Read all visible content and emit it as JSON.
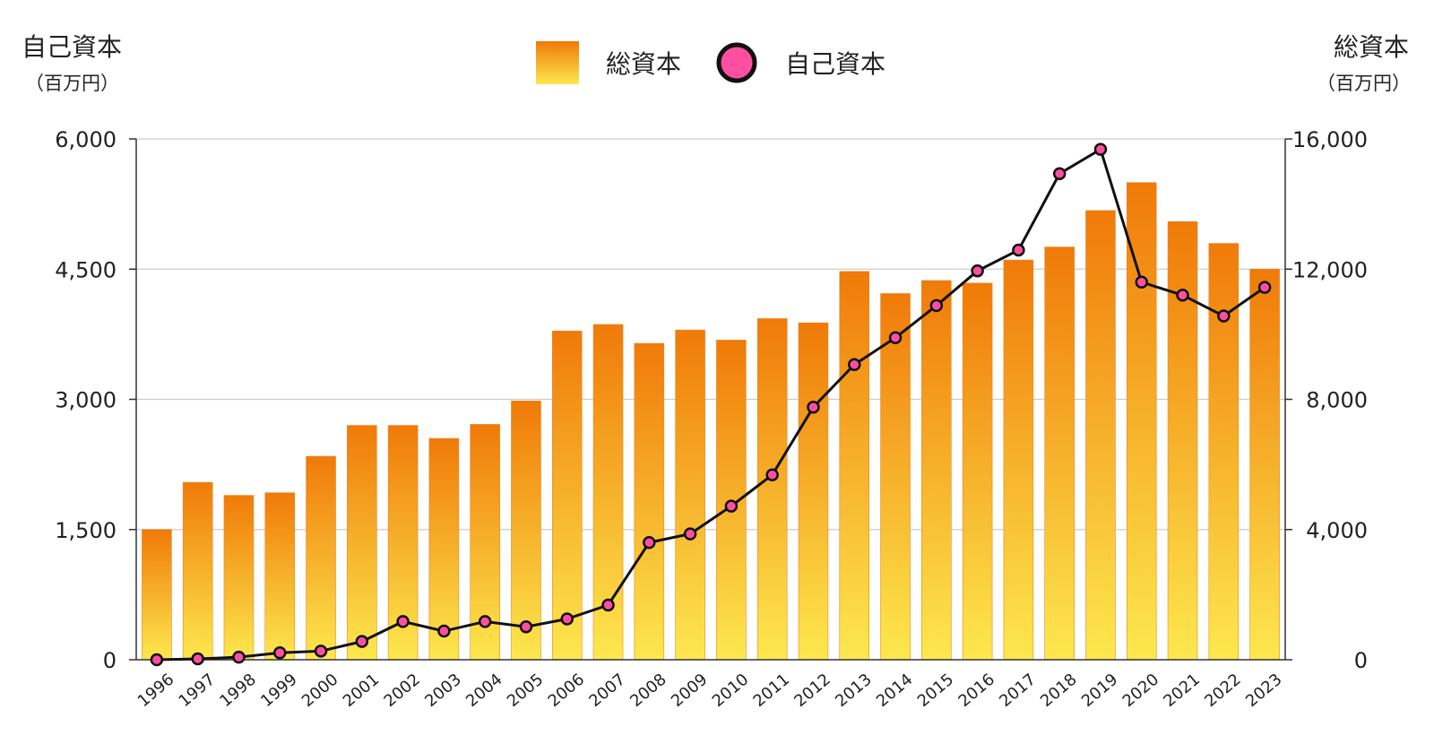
{
  "chart_data": {
    "type": "bar+line",
    "categories": [
      "1996",
      "1997",
      "1998",
      "1999",
      "2000",
      "2001",
      "2002",
      "2003",
      "2004",
      "2005",
      "2006",
      "2007",
      "2008",
      "2009",
      "2010",
      "2011",
      "2012",
      "2013",
      "2014",
      "2015",
      "2016",
      "2017",
      "2018",
      "2019",
      "2020",
      "2021",
      "2022",
      "2023"
    ],
    "series": [
      {
        "name": "総資本",
        "kind": "bar",
        "axis": "right",
        "values": [
          4000,
          5450,
          5050,
          5130,
          6250,
          7200,
          7200,
          6800,
          7230,
          7950,
          10100,
          10300,
          9720,
          10130,
          9820,
          10480,
          10350,
          11930,
          11250,
          11650,
          11570,
          12280,
          12680,
          13800,
          14660,
          13460,
          12790,
          12000
        ]
      },
      {
        "name": "自己資本",
        "kind": "line",
        "axis": "left",
        "values": [
          0,
          10,
          30,
          80,
          100,
          210,
          440,
          330,
          440,
          380,
          470,
          630,
          1350,
          1450,
          1770,
          2130,
          2910,
          3400,
          3710,
          4080,
          4480,
          4720,
          5600,
          5880,
          4350,
          4200,
          3960,
          4290
        ]
      }
    ],
    "left_axis": {
      "title": "自己資本",
      "unit": "（百万円）",
      "ylim": [
        0,
        6000
      ],
      "ticks": [
        0,
        1500,
        3000,
        4500,
        6000
      ],
      "tick_labels": [
        "0",
        "1,500",
        "3,000",
        "4,500",
        "6,000"
      ]
    },
    "right_axis": {
      "title": "総資本",
      "unit": "（百万円）",
      "ylim": [
        0,
        16000
      ],
      "ticks": [
        0,
        4000,
        8000,
        12000,
        16000
      ],
      "tick_labels": [
        "0",
        "4,000",
        "8,000",
        "12,000",
        "16,000"
      ]
    },
    "legend": [
      {
        "label": "総資本",
        "marker": "square"
      },
      {
        "label": "自己資本",
        "marker": "circle"
      }
    ],
    "legend_position": "top-center",
    "grid": true,
    "colors": {
      "bar_top": "#f07a08",
      "bar_bottom": "#fde84e",
      "line": "#111111",
      "marker": "#ff4fa0",
      "grid": "#cccccc",
      "axis": "#333333"
    }
  }
}
